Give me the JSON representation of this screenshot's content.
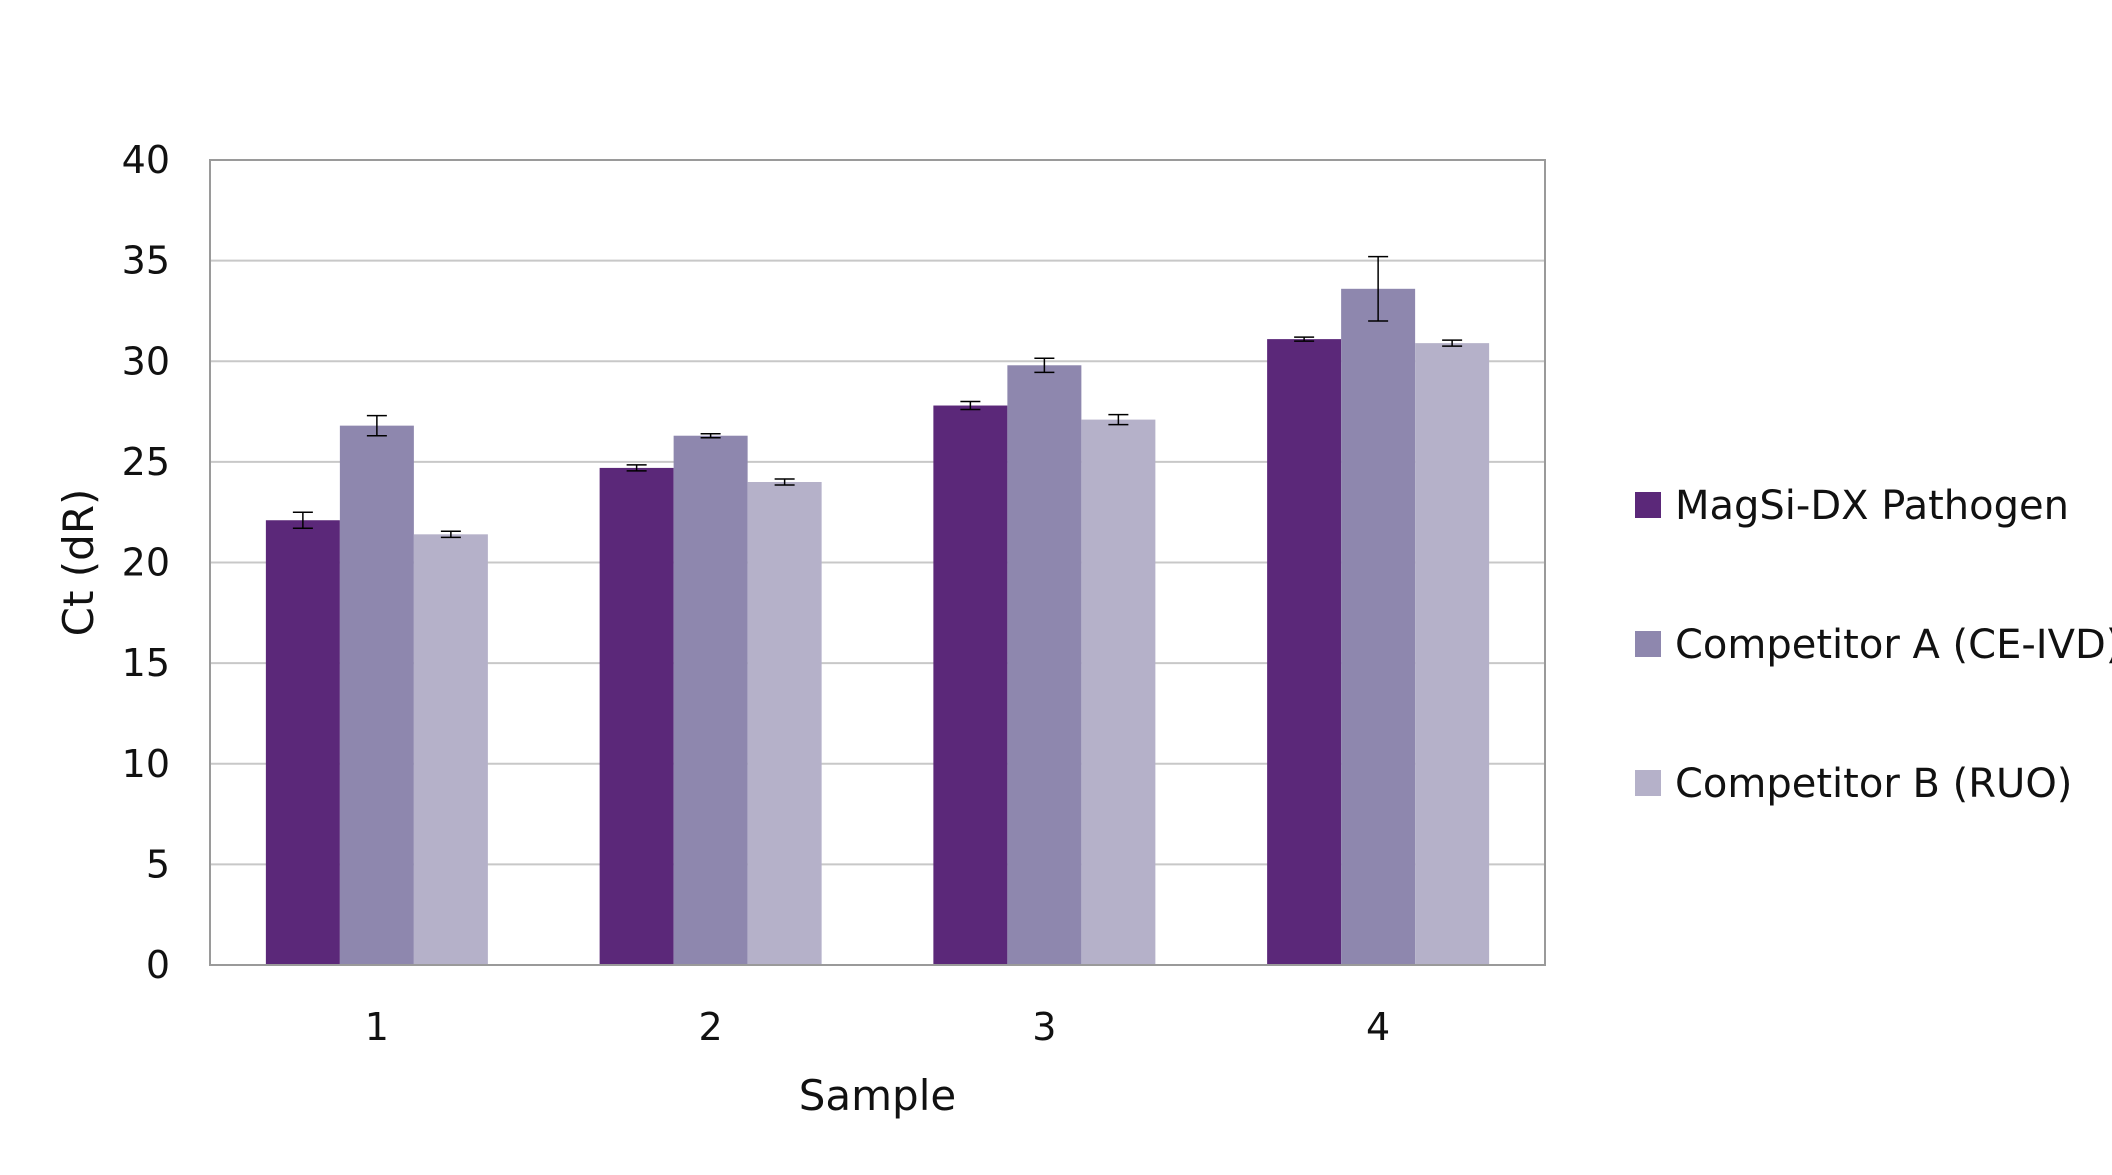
{
  "chart_data": {
    "type": "bar",
    "title": "",
    "xlabel": "Sample",
    "ylabel": "Ct (dR)",
    "categories": [
      "1",
      "2",
      "3",
      "4"
    ],
    "ylim": [
      0,
      40
    ],
    "yticks": [
      0,
      5,
      10,
      15,
      20,
      25,
      30,
      35,
      40
    ],
    "grid": "horizontal",
    "legend_position": "right",
    "series": [
      {
        "name": "MagSi-DX Pathogen",
        "color": "#5b2879",
        "values": [
          22.1,
          24.7,
          27.8,
          31.1
        ],
        "errors": [
          0.4,
          0.15,
          0.2,
          0.1
        ]
      },
      {
        "name": "Competitor A (CE-IVD)",
        "color": "#8e87ae",
        "values": [
          26.8,
          26.3,
          29.8,
          33.6
        ],
        "errors": [
          0.5,
          0.1,
          0.35,
          1.6
        ]
      },
      {
        "name": "Competitor B (RUO)",
        "color": "#b5b1c9",
        "values": [
          21.4,
          24.0,
          27.1,
          30.9
        ],
        "errors": [
          0.15,
          0.15,
          0.25,
          0.15
        ]
      }
    ]
  }
}
